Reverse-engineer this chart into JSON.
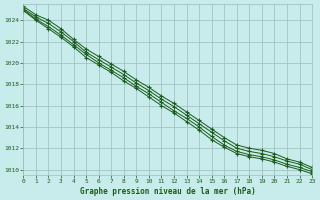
{
  "title": "Graphe pression niveau de la mer (hPa)",
  "background_color": "#c8ecec",
  "plot_bg_color": "#c8ecec",
  "grid_color": "#9dbcbc",
  "line_color": "#1a5c1a",
  "xlim": [
    0,
    23
  ],
  "ylim": [
    1009.5,
    1025.5
  ],
  "yticks": [
    1010,
    1012,
    1014,
    1016,
    1018,
    1020,
    1022,
    1024
  ],
  "xticks": [
    0,
    1,
    2,
    3,
    4,
    5,
    6,
    7,
    8,
    9,
    10,
    11,
    12,
    13,
    14,
    15,
    16,
    17,
    18,
    19,
    20,
    21,
    22,
    23
  ],
  "lines": [
    [
      1025.3,
      1024.5,
      1024.0,
      1023.2,
      1022.2,
      1021.3,
      1020.6,
      1019.9,
      1019.2,
      1018.4,
      1017.7,
      1016.9,
      1016.2,
      1015.4,
      1014.6,
      1013.8,
      1013.0,
      1012.3,
      1012.0,
      1011.8,
      1011.5,
      1011.0,
      1010.7,
      1010.2
    ],
    [
      1025.1,
      1024.3,
      1023.7,
      1022.9,
      1022.0,
      1021.0,
      1020.3,
      1019.6,
      1018.9,
      1018.1,
      1017.4,
      1016.6,
      1015.9,
      1015.1,
      1014.3,
      1013.5,
      1012.7,
      1012.0,
      1011.7,
      1011.5,
      1011.2,
      1010.8,
      1010.5,
      1010.0
    ],
    [
      1025.0,
      1024.1,
      1023.4,
      1022.6,
      1021.7,
      1020.8,
      1020.0,
      1019.3,
      1018.6,
      1017.8,
      1017.1,
      1016.3,
      1015.5,
      1014.8,
      1014.0,
      1013.1,
      1012.3,
      1011.7,
      1011.4,
      1011.2,
      1010.9,
      1010.5,
      1010.2,
      1009.8
    ],
    [
      1024.9,
      1024.0,
      1023.2,
      1022.4,
      1021.5,
      1020.5,
      1019.8,
      1019.1,
      1018.3,
      1017.6,
      1016.8,
      1016.0,
      1015.3,
      1014.5,
      1013.7,
      1012.8,
      1012.1,
      1011.5,
      1011.2,
      1011.0,
      1010.7,
      1010.3,
      1010.0,
      1009.6
    ]
  ]
}
